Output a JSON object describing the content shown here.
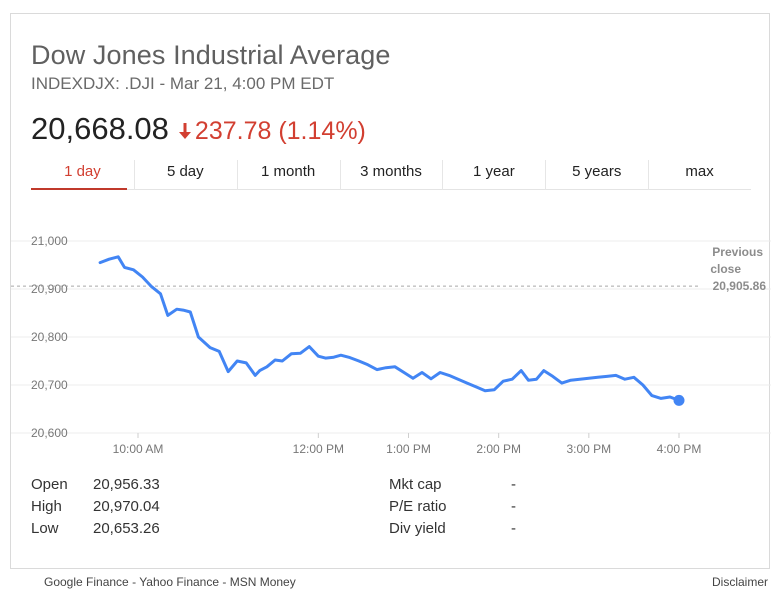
{
  "header": {
    "title": "Dow Jones Industrial Average",
    "subtitle": "INDEXDJX: .DJI - Mar 21, 4:00 PM EDT",
    "price": "20,668.08",
    "change": "237.78 (1.14%)",
    "change_color": "#d23f31",
    "change_icon": "arrow-down-icon"
  },
  "tabs": [
    {
      "label": "1 day",
      "active": true
    },
    {
      "label": "5 day",
      "active": false
    },
    {
      "label": "1 month",
      "active": false
    },
    {
      "label": "3 months",
      "active": false
    },
    {
      "label": "1 year",
      "active": false
    },
    {
      "label": "5 years",
      "active": false
    },
    {
      "label": "max",
      "active": false
    }
  ],
  "chart_data": {
    "type": "line",
    "line_color": "#4285f4",
    "ylim": [
      20600,
      21000
    ],
    "y_ticks": [
      21000,
      20900,
      20800,
      20700,
      20600
    ],
    "y_tick_labels": [
      "21,000",
      "20,900",
      "20,800",
      "20,700",
      "20,600"
    ],
    "x_ticks": [
      "10:00 AM",
      "12:00 PM",
      "1:00 PM",
      "2:00 PM",
      "3:00 PM",
      "4:00 PM"
    ],
    "x_tick_times": [
      10.0,
      12.0,
      13.0,
      14.0,
      15.0,
      16.0
    ],
    "xlim": [
      9.5,
      16.0
    ],
    "grid": true,
    "reference_line": {
      "label_line1": "Previous",
      "label_line2": "close",
      "value_label": "20,905.86",
      "value": 20905.86
    },
    "series": [
      {
        "x": [
          9.58,
          9.68,
          9.78,
          9.85,
          9.95,
          10.05,
          10.15,
          10.25,
          10.33,
          10.43,
          10.5,
          10.58,
          10.67,
          10.8,
          10.9,
          11.0,
          11.1,
          11.2,
          11.3,
          11.35,
          11.43,
          11.52,
          11.6,
          11.7,
          11.8,
          11.9,
          12.0,
          12.08,
          12.17,
          12.25,
          12.35,
          12.45,
          12.55,
          12.65,
          12.75,
          12.85,
          12.95,
          13.05,
          13.15,
          13.25,
          13.35,
          13.45,
          13.55,
          13.65,
          13.75,
          13.85,
          13.95,
          14.05,
          14.15,
          14.25,
          14.33,
          14.42,
          14.5,
          14.6,
          14.7,
          14.8,
          14.9,
          15.0,
          15.1,
          15.2,
          15.3,
          15.4,
          15.5,
          15.6,
          15.7,
          15.8,
          15.9,
          16.0
        ],
        "y": [
          20955,
          20962,
          20967,
          20945,
          20940,
          20925,
          20905,
          20890,
          20845,
          20858,
          20856,
          20852,
          20800,
          20778,
          20770,
          20728,
          20750,
          20746,
          20720,
          20730,
          20738,
          20752,
          20750,
          20765,
          20766,
          20780,
          20760,
          20756,
          20758,
          20762,
          20757,
          20750,
          20742,
          20732,
          20736,
          20738,
          20726,
          20714,
          20726,
          20713,
          20726,
          20720,
          20712,
          20704,
          20696,
          20688,
          20690,
          20708,
          20712,
          20730,
          20710,
          20712,
          20730,
          20718,
          20704,
          20710,
          20712,
          20714,
          20716,
          20718,
          20720,
          20712,
          20716,
          20700,
          20678,
          20672,
          20675,
          20668
        ]
      }
    ]
  },
  "stats": {
    "open_label": "Open",
    "open_value": "20,956.33",
    "high_label": "High",
    "high_value": "20,970.04",
    "low_label": "Low",
    "low_value": "20,653.26",
    "mktcap_label": "Mkt cap",
    "mktcap_value": "-",
    "pe_label": "P/E ratio",
    "pe_value": "-",
    "div_label": "Div yield",
    "div_value": "-"
  },
  "footer": {
    "google": "Google Finance",
    "sep1": " - ",
    "yahoo": "Yahoo Finance",
    "sep2": " - ",
    "msn": "MSN Money",
    "disclaimer": "Disclaimer"
  }
}
